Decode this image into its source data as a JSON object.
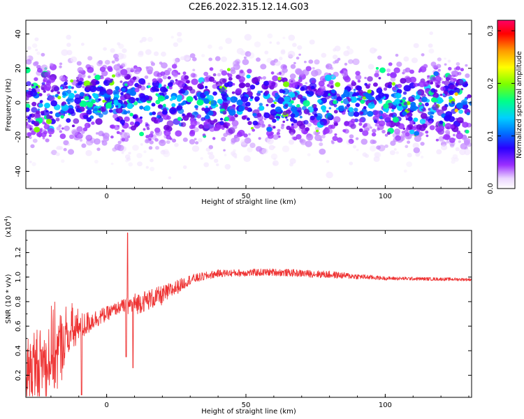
{
  "page_title": "C2E6.2022.315.12.14.G03",
  "chart_data": [
    {
      "type": "heatmap",
      "xlabel": "Height of straight line (km)",
      "ylabel": "Frequency (Hz)",
      "xlim": [
        -29,
        131
      ],
      "ylim": [
        -50,
        48
      ],
      "xticks": [
        0,
        50,
        100
      ],
      "yticks": [
        -40,
        -20,
        0,
        20,
        40
      ],
      "colorbar": {
        "label": "Normalized spectral amplitude",
        "range": [
          0.0,
          0.32
        ],
        "ticks": [
          0.0,
          0.1,
          0.2,
          0.3
        ],
        "colormap": [
          "#ffffff",
          "#d9b8f5",
          "#9b30ff",
          "#6a00e0",
          "#2a00ff",
          "#0070ff",
          "#00d0ff",
          "#00ff88",
          "#7cff00",
          "#ffff00",
          "#ff9900",
          "#ff0000",
          "#ff0066"
        ]
      },
      "description_band": {
        "dense_freq_range": [
          -40,
          40
        ],
        "hot_freq_range": [
          -20,
          20
        ]
      }
    },
    {
      "type": "line",
      "xlabel": "Height of straight line (km)",
      "ylabel": "SNR (10 * v/v)",
      "y_multiplier_label": "(x10",
      "y_multiplier_exp": "4",
      "y_multiplier_close": ")",
      "xlim": [
        -29,
        131
      ],
      "ylim": [
        0.02,
        1.38
      ],
      "xticks": [
        0,
        50,
        100
      ],
      "yticks": [
        0.2,
        0.4,
        0.6,
        0.8,
        1.0,
        1.2
      ],
      "line_color": "#ee3333",
      "trend_points": [
        {
          "x": -29,
          "y": 0.22,
          "noise": 0.22
        },
        {
          "x": -20,
          "y": 0.35,
          "noise": 0.25
        },
        {
          "x": -12,
          "y": 0.55,
          "noise": 0.15
        },
        {
          "x": -5,
          "y": 0.65,
          "noise": 0.08
        },
        {
          "x": 0,
          "y": 0.7,
          "noise": 0.06
        },
        {
          "x": 5,
          "y": 0.76,
          "noise": 0.05
        },
        {
          "x": 10,
          "y": 0.78,
          "noise": 0.09
        },
        {
          "x": 20,
          "y": 0.85,
          "noise": 0.08
        },
        {
          "x": 30,
          "y": 0.98,
          "noise": 0.04
        },
        {
          "x": 40,
          "y": 1.03,
          "noise": 0.03
        },
        {
          "x": 60,
          "y": 1.04,
          "noise": 0.03
        },
        {
          "x": 80,
          "y": 1.02,
          "noise": 0.03
        },
        {
          "x": 100,
          "y": 0.99,
          "noise": 0.015
        },
        {
          "x": 131,
          "y": 0.98,
          "noise": 0.012
        }
      ],
      "features": [
        {
          "x": 7.5,
          "y": 1.36
        },
        {
          "x": 7.0,
          "y": 0.35
        },
        {
          "x": 9.5,
          "y": 0.26
        },
        {
          "x": -9.0,
          "y": 0.04
        }
      ]
    }
  ]
}
